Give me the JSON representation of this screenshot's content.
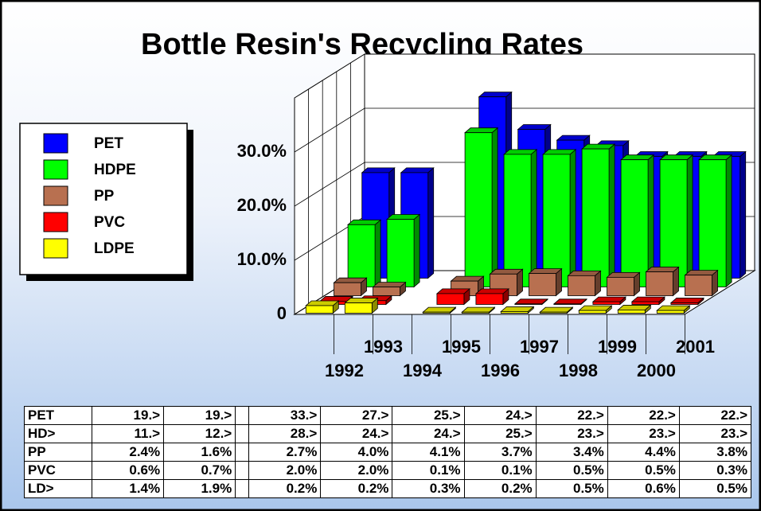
{
  "chart_data": {
    "type": "bar3d",
    "title": "Bottle Resin's Recycling Rates",
    "categories": [
      "1992",
      "1993",
      "1994",
      "1995",
      "1996",
      "1997",
      "1998",
      "1999",
      "2000",
      "2001"
    ],
    "ylim": [
      0,
      40
    ],
    "yticks": [
      0,
      {
        "value": 10,
        "label": "10.0%"
      },
      {
        "value": 20,
        "label": "20.0%"
      },
      {
        "value": 30,
        "label": "30.0%"
      }
    ],
    "grid": true,
    "series": [
      {
        "name": "PET",
        "color": "#0000ff",
        "values": [
          19.5,
          19.5,
          null,
          33.5,
          27.5,
          25.5,
          24.5,
          22.5,
          22.5,
          22.5
        ],
        "value_labels": [
          "19.>",
          "19.>",
          null,
          "33.>",
          "27.>",
          "25.>",
          "24.>",
          "22.>",
          "22.>",
          "22.>"
        ]
      },
      {
        "name": "HDPE",
        "color": "#00ff00",
        "values": [
          11.5,
          12.5,
          null,
          28.5,
          24.5,
          24.5,
          25.5,
          23.5,
          23.5,
          23.5
        ],
        "value_labels": [
          "11.>",
          "12.>",
          null,
          "28.>",
          "24.>",
          "24.>",
          "25.>",
          "23.>",
          "23.>",
          "23.>"
        ]
      },
      {
        "name": "PP",
        "color": "#b87050",
        "values": [
          2.4,
          1.6,
          null,
          2.7,
          4.0,
          4.1,
          3.7,
          3.4,
          4.4,
          3.8
        ],
        "value_labels": [
          "2.4%",
          "1.6%",
          null,
          "2.7%",
          "4.0%",
          "4.1%",
          "3.7%",
          "3.4%",
          "4.4%",
          "3.8%"
        ]
      },
      {
        "name": "PVC",
        "color": "#ff0000",
        "values": [
          0.6,
          0.7,
          null,
          2.0,
          2.0,
          0.1,
          0.1,
          0.5,
          0.5,
          0.3
        ],
        "value_labels": [
          "0.6%",
          "0.7%",
          null,
          "2.0%",
          "2.0%",
          "0.1%",
          "0.1%",
          "0.5%",
          "0.5%",
          "0.3%"
        ]
      },
      {
        "name": "LDPE",
        "color": "#ffff00",
        "values": [
          1.4,
          1.9,
          null,
          0.2,
          0.2,
          0.3,
          0.2,
          0.5,
          0.6,
          0.5
        ],
        "value_labels": [
          "1.4%",
          "1.9%",
          null,
          "0.2%",
          "0.2%",
          "0.3%",
          "0.2%",
          "0.5%",
          "0.6%",
          "0.5%"
        ]
      }
    ],
    "table_row_labels": [
      "PET",
      "HD>",
      "PP",
      "PVC",
      "LD>"
    ]
  }
}
